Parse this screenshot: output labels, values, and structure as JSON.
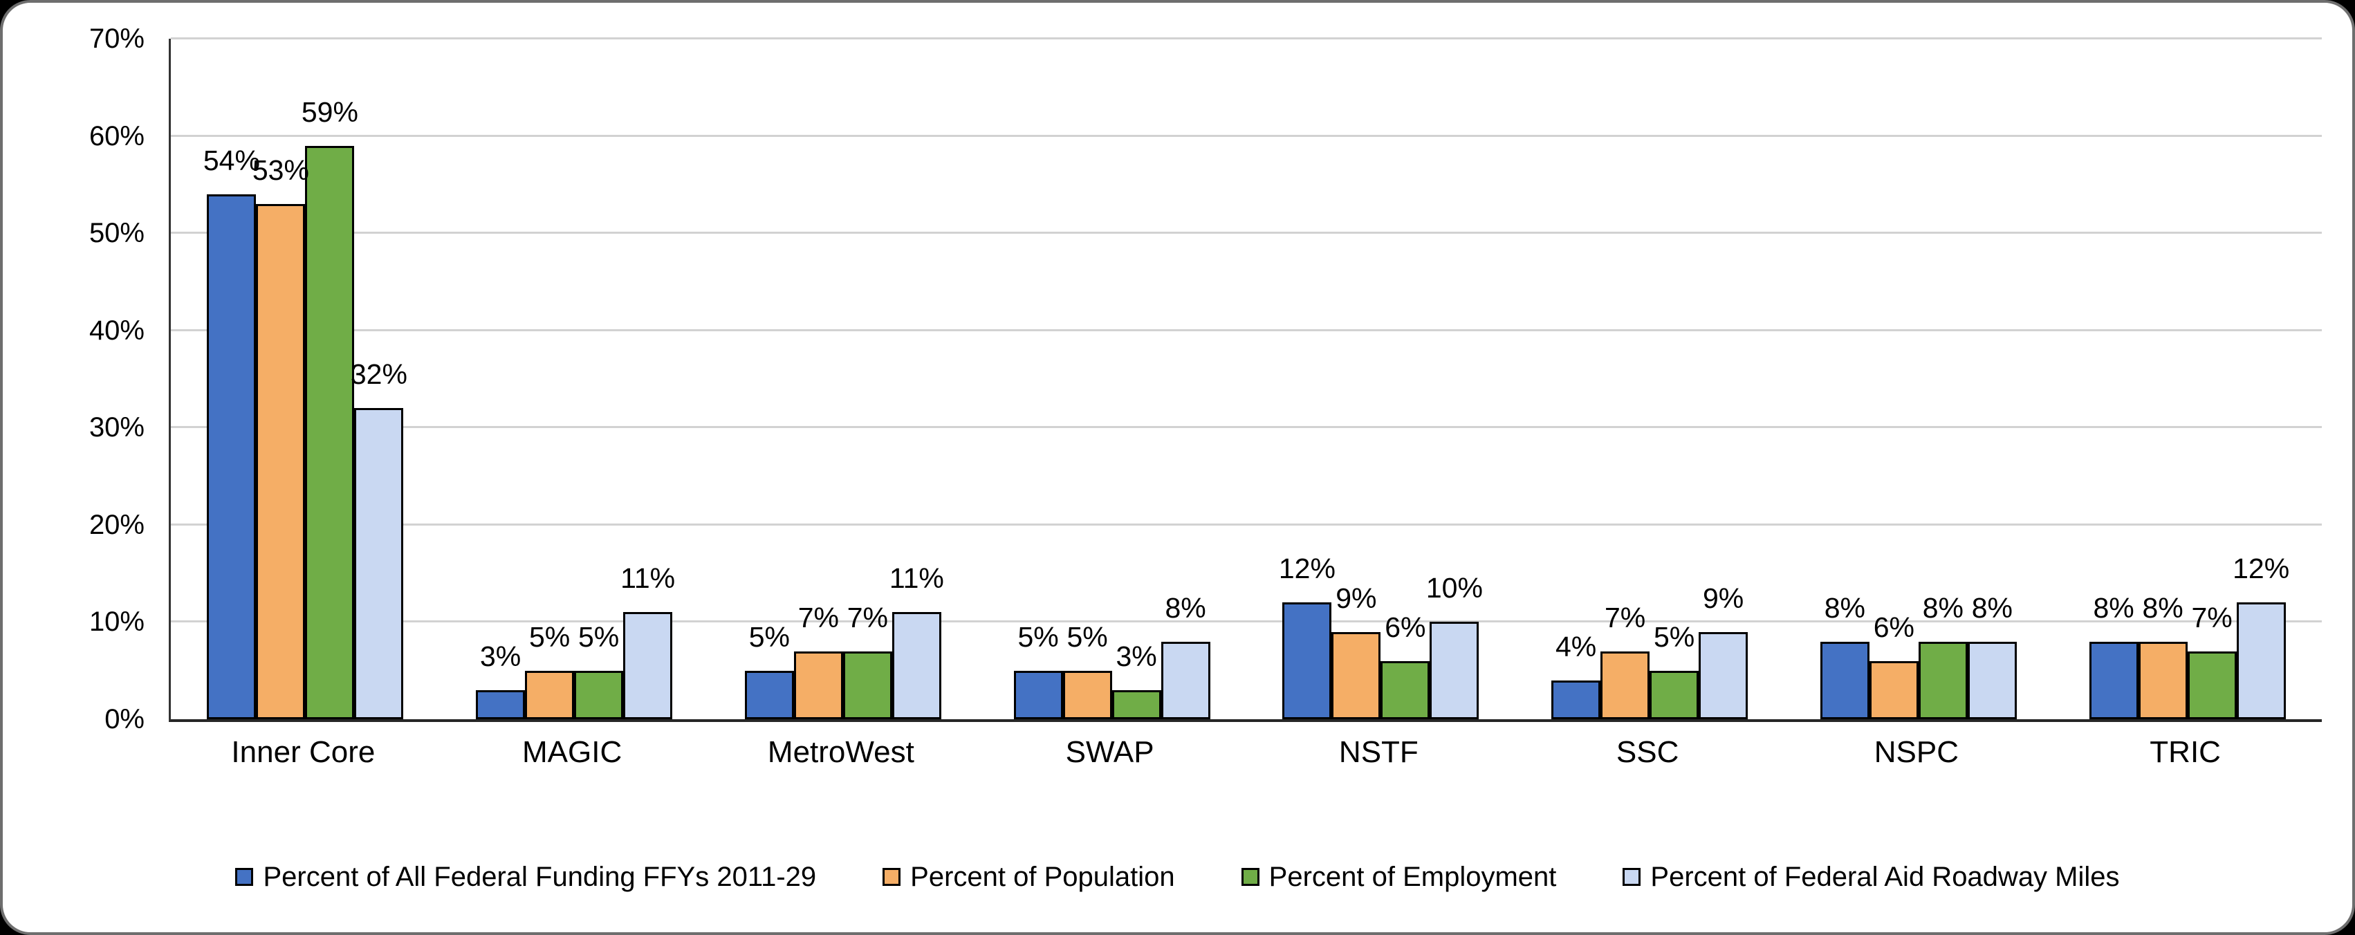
{
  "chart_data": {
    "type": "bar",
    "categories": [
      "Inner Core",
      "MAGIC",
      "MetroWest",
      "SWAP",
      "NSTF",
      "SSC",
      "NSPC",
      "TRIC"
    ],
    "series": [
      {
        "name": "Percent of All Federal Funding FFYs 2011-29",
        "color": "#4472C4",
        "values": [
          54,
          3,
          5,
          5,
          12,
          4,
          8,
          8
        ]
      },
      {
        "name": "Percent of Population",
        "color": "#F5AE66",
        "values": [
          53,
          5,
          7,
          5,
          9,
          7,
          6,
          8
        ]
      },
      {
        "name": "Percent of Employment",
        "color": "#70AD47",
        "values": [
          59,
          5,
          7,
          3,
          6,
          5,
          8,
          7
        ]
      },
      {
        "name": "Percent of Federal Aid Roadway Miles",
        "color": "#C9D8F2",
        "values": [
          32,
          11,
          11,
          8,
          10,
          9,
          8,
          12
        ]
      }
    ],
    "title": "",
    "xlabel": "",
    "ylabel": "",
    "ylim": [
      0,
      70
    ],
    "ytick_step": 10,
    "ytick_labels": [
      "0%",
      "10%",
      "20%",
      "30%",
      "40%",
      "50%",
      "60%",
      "70%"
    ],
    "data_label_suffix": "%",
    "grid": true,
    "legend_position": "bottom"
  },
  "colors": {
    "grid": "#d2d2d2",
    "axis": "#262626",
    "bar_border": "#000000",
    "text": "#000000",
    "card_border": "#6e6e6e",
    "background": "#ffffff"
  }
}
